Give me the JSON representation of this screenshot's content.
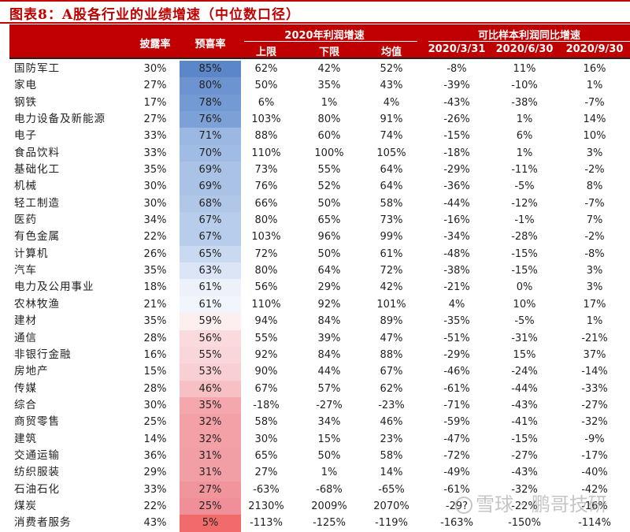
{
  "title": "图表8：A股各行业的业绩增速（中位数口径）",
  "header": {
    "disclosure_rate": "披露率",
    "positive_rate": "预喜率",
    "group1": "2020年利润增速",
    "group2": "可比样本利润同比增速",
    "upper": "上限",
    "lower": "下限",
    "mean": "均值",
    "d1": "2020/3/31",
    "d2": "2020/6/30",
    "d3": "2020/9/30"
  },
  "colors": {
    "header_bg": "#c00000",
    "blue_strong": "#5b86c8",
    "red_strong": "#f26b6b"
  },
  "chart_data": {
    "type": "table",
    "title": "图表8：A股各行业的业绩增速（中位数口径）",
    "columns": [
      "行业",
      "披露率",
      "预喜率",
      "2020年利润增速-上限",
      "2020年利润增速-下限",
      "2020年利润增速-均值",
      "2020/3/31",
      "2020/6/30",
      "2020/9/30"
    ],
    "rows": [
      [
        "国防军工",
        "30%",
        "85%",
        "62%",
        "42%",
        "52%",
        "-8%",
        "11%",
        "16%"
      ],
      [
        "家电",
        "27%",
        "80%",
        "50%",
        "35%",
        "43%",
        "-39%",
        "-10%",
        "1%"
      ],
      [
        "钢铁",
        "17%",
        "78%",
        "6%",
        "1%",
        "4%",
        "-43%",
        "-38%",
        "-7%"
      ],
      [
        "电力设备及新能源",
        "27%",
        "76%",
        "103%",
        "80%",
        "91%",
        "-26%",
        "1%",
        "14%"
      ],
      [
        "电子",
        "33%",
        "71%",
        "88%",
        "60%",
        "74%",
        "-15%",
        "6%",
        "10%"
      ],
      [
        "食品饮料",
        "33%",
        "70%",
        "110%",
        "100%",
        "105%",
        "-18%",
        "1%",
        "3%"
      ],
      [
        "基础化工",
        "35%",
        "69%",
        "73%",
        "55%",
        "64%",
        "-29%",
        "-11%",
        "-2%"
      ],
      [
        "机械",
        "30%",
        "69%",
        "76%",
        "52%",
        "64%",
        "-36%",
        "-5%",
        "8%"
      ],
      [
        "轻工制造",
        "30%",
        "68%",
        "66%",
        "50%",
        "58%",
        "-44%",
        "-12%",
        "-7%"
      ],
      [
        "医药",
        "34%",
        "67%",
        "80%",
        "65%",
        "73%",
        "-16%",
        "-1%",
        "7%"
      ],
      [
        "有色金属",
        "22%",
        "67%",
        "103%",
        "96%",
        "99%",
        "-34%",
        "-28%",
        "-2%"
      ],
      [
        "计算机",
        "26%",
        "65%",
        "72%",
        "50%",
        "61%",
        "-48%",
        "-15%",
        "-8%"
      ],
      [
        "汽车",
        "35%",
        "63%",
        "80%",
        "64%",
        "72%",
        "-38%",
        "-15%",
        "3%"
      ],
      [
        "电力及公用事业",
        "18%",
        "61%",
        "56%",
        "29%",
        "42%",
        "-21%",
        "0%",
        "3%"
      ],
      [
        "农林牧渔",
        "21%",
        "61%",
        "110%",
        "92%",
        "101%",
        "4%",
        "10%",
        "17%"
      ],
      [
        "建材",
        "35%",
        "59%",
        "94%",
        "84%",
        "89%",
        "-35%",
        "-5%",
        "1%"
      ],
      [
        "通信",
        "28%",
        "56%",
        "55%",
        "39%",
        "47%",
        "-51%",
        "-31%",
        "-21%"
      ],
      [
        "非银行金融",
        "16%",
        "55%",
        "92%",
        "84%",
        "88%",
        "-29%",
        "15%",
        "37%"
      ],
      [
        "房地产",
        "15%",
        "53%",
        "90%",
        "44%",
        "67%",
        "-46%",
        "-24%",
        "-14%"
      ],
      [
        "传媒",
        "28%",
        "46%",
        "67%",
        "57%",
        "62%",
        "-61%",
        "-44%",
        "-33%"
      ],
      [
        "综合",
        "30%",
        "35%",
        "-18%",
        "-27%",
        "-23%",
        "-71%",
        "-43%",
        "-27%"
      ],
      [
        "商贸零售",
        "25%",
        "32%",
        "58%",
        "34%",
        "46%",
        "-59%",
        "-41%",
        "-32%"
      ],
      [
        "建筑",
        "14%",
        "32%",
        "30%",
        "15%",
        "23%",
        "-47%",
        "-15%",
        "-9%"
      ],
      [
        "交通运输",
        "36%",
        "31%",
        "65%",
        "50%",
        "58%",
        "-72%",
        "-27%",
        "-17%"
      ],
      [
        "纺织服装",
        "29%",
        "31%",
        "27%",
        "1%",
        "14%",
        "-49%",
        "-43%",
        "-40%"
      ],
      [
        "石油石化",
        "33%",
        "27%",
        "-63%",
        "-68%",
        "-65%",
        "-61%",
        "-32%",
        "-42%"
      ],
      [
        "煤炭",
        "22%",
        "25%",
        "2130%",
        "2009%",
        "2070%",
        "-29?",
        "-22%",
        "-16%"
      ],
      [
        "消费者服务",
        "43%",
        "5%",
        "-113%",
        "-125%",
        "-119%",
        "-163%",
        "-150%",
        "-114%"
      ]
    ]
  },
  "heat": [
    "#5b86c8",
    "#6d94d0",
    "#739ad3",
    "#7ca1d6",
    "#9bb8e2",
    "#a0bce4",
    "#a9c2e6",
    "#a9c2e6",
    "#b0c7e8",
    "#b8cdeb",
    "#b8cdeb",
    "#c9d9f0",
    "#dbe5f5",
    "#ecf1fa",
    "#f2f5fb",
    "#fdeef0",
    "#fadadd",
    "#f9d6d9",
    "#f8d0d4",
    "#f6c0c5",
    "#f4a7ad",
    "#f3a0a7",
    "#f3a0a7",
    "#f29ea5",
    "#f29ea5",
    "#f1959c",
    "#f08f97",
    "#f26b6b"
  ],
  "watermark": "雪球 · 鹏哥技研"
}
